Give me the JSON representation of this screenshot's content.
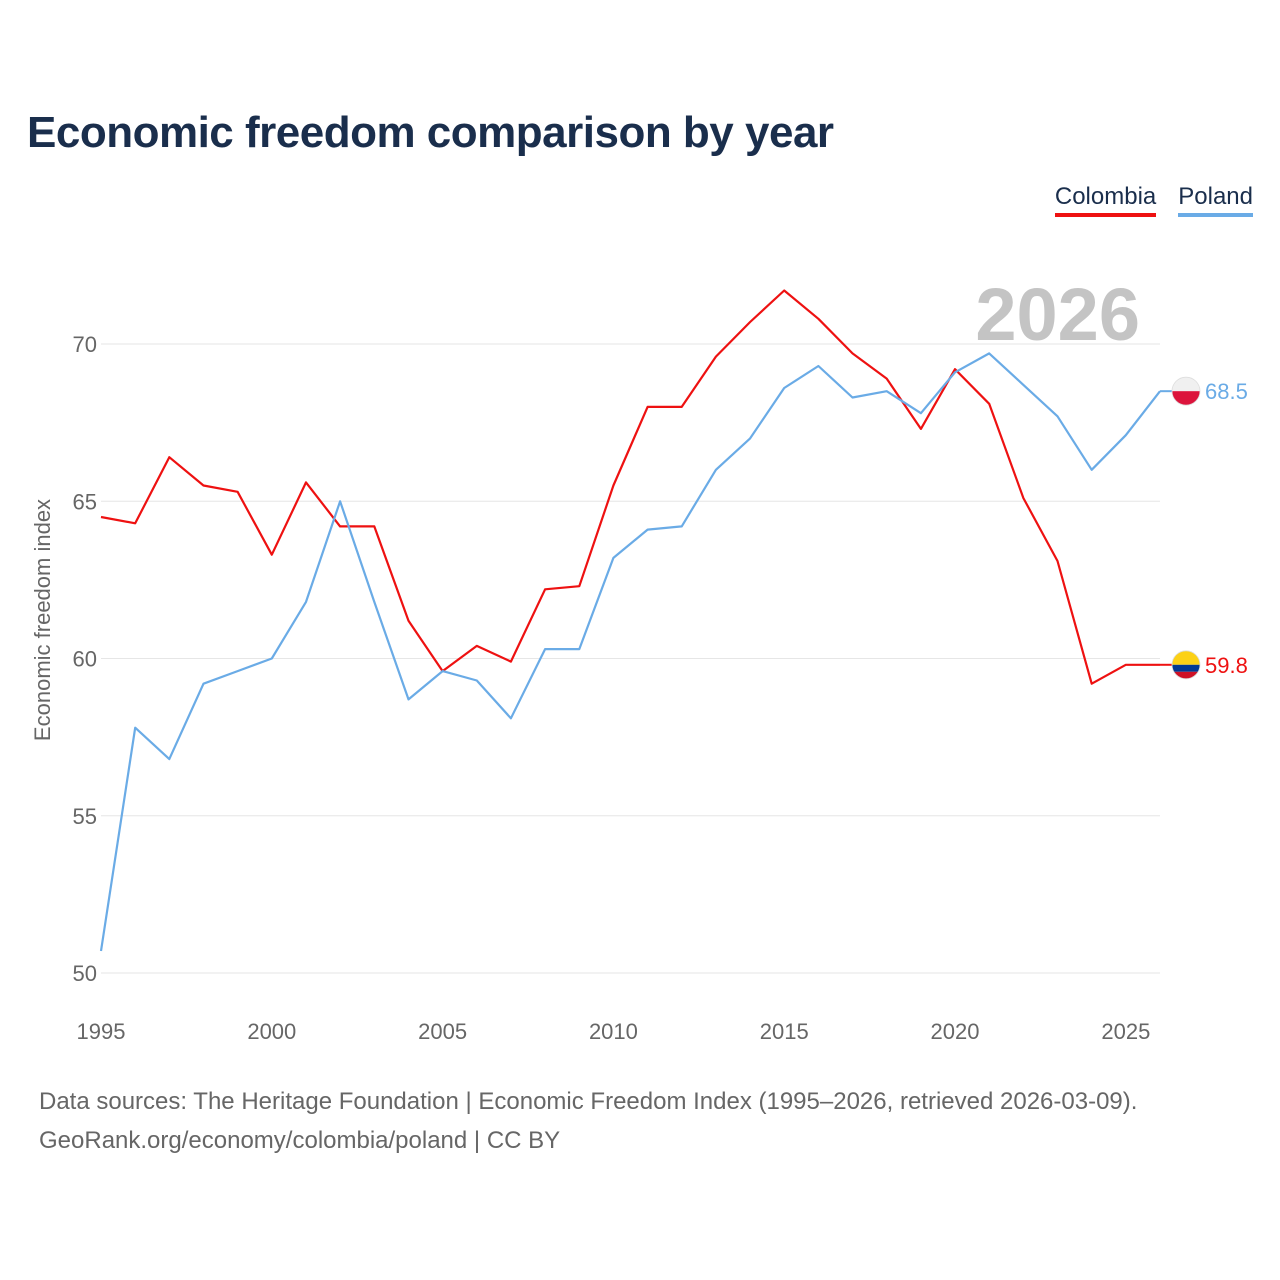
{
  "title": "Economic freedom comparison by year",
  "year_watermark": "2026",
  "legend": [
    {
      "label": "Colombia",
      "color": "#ee1111"
    },
    {
      "label": "Poland",
      "color": "#6aabe6"
    }
  ],
  "sources": {
    "line1": "Data sources: The Heritage Foundation | Economic Freedom Index (1995–2026, retrieved 2026-03-09).",
    "line2": "GeoRank.org/economy/colombia/poland | CC BY"
  },
  "chart_data": {
    "type": "line",
    "title": "Economic freedom comparison by year",
    "xlabel": "",
    "ylabel": "Economic freedom index",
    "xlim": [
      1995,
      2026
    ],
    "ylim": [
      50,
      73
    ],
    "x_ticks": [
      "1995",
      "2000",
      "2005",
      "2010",
      "2015",
      "2020",
      "2025"
    ],
    "y_ticks": [
      "50",
      "55",
      "60",
      "65",
      "70"
    ],
    "grid": true,
    "legend_position": "top-right",
    "x": [
      1995,
      1996,
      1997,
      1998,
      1999,
      2000,
      2001,
      2002,
      2003,
      2004,
      2005,
      2006,
      2007,
      2008,
      2009,
      2010,
      2011,
      2012,
      2013,
      2014,
      2015,
      2016,
      2017,
      2018,
      2019,
      2020,
      2021,
      2022,
      2023,
      2024,
      2025,
      2026
    ],
    "series": [
      {
        "name": "Colombia",
        "color": "#ee1111",
        "flag": "colombia-flag",
        "end_label": "59.8",
        "values": [
          64.5,
          64.3,
          66.4,
          65.5,
          65.3,
          63.3,
          65.6,
          64.2,
          64.2,
          61.2,
          59.6,
          60.4,
          59.9,
          62.2,
          62.3,
          65.5,
          68.0,
          68.0,
          69.6,
          70.7,
          71.7,
          70.8,
          69.7,
          68.9,
          67.3,
          69.2,
          68.1,
          65.1,
          63.1,
          59.2,
          59.8,
          59.8
        ]
      },
      {
        "name": "Poland",
        "color": "#6aabe6",
        "flag": "poland-flag",
        "end_label": "68.5",
        "values": [
          50.7,
          57.8,
          56.8,
          59.2,
          59.6,
          60.0,
          61.8,
          65.0,
          61.8,
          58.7,
          59.6,
          59.3,
          58.1,
          60.3,
          60.3,
          63.2,
          64.1,
          64.2,
          66.0,
          67.0,
          68.6,
          69.3,
          68.3,
          68.5,
          67.8,
          69.1,
          69.7,
          68.7,
          67.7,
          66.0,
          67.1,
          68.5
        ]
      }
    ]
  }
}
